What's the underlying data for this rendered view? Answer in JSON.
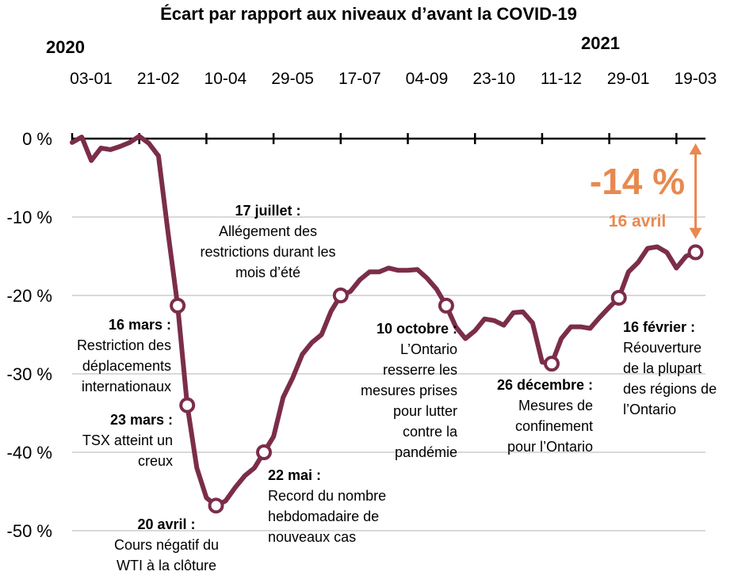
{
  "chart_data": {
    "type": "line",
    "title": "Écart par rapport aux niveaux d’avant la COVID-19",
    "years": [
      {
        "label": "2020",
        "x": 0
      },
      {
        "label": "2021",
        "x": 47
      }
    ],
    "x_ticks": [
      {
        "label": "03-01",
        "x": 0
      },
      {
        "label": "21-02",
        "x": 7
      },
      {
        "label": "10-04",
        "x": 14
      },
      {
        "label": "29-05",
        "x": 21
      },
      {
        "label": "17-07",
        "x": 28
      },
      {
        "label": "04-09",
        "x": 35
      },
      {
        "label": "23-10",
        "x": 42
      },
      {
        "label": "11-12",
        "x": 49
      },
      {
        "label": "29-01",
        "x": 56
      },
      {
        "label": "19-03",
        "x": 63
      }
    ],
    "ylim": [
      -52,
      3
    ],
    "y_ticks": [
      {
        "label": "0 %",
        "value": 0
      },
      {
        "label": "-10 %",
        "value": -10
      },
      {
        "label": "-20 %",
        "value": -20
      },
      {
        "label": "-30 %",
        "value": -30
      },
      {
        "label": "-40 %",
        "value": -40
      },
      {
        "label": "-50 %",
        "value": -50
      }
    ],
    "series": [
      {
        "color": "#7B2D4A",
        "points": [
          [
            0,
            -0.5
          ],
          [
            1,
            0.2
          ],
          [
            2,
            -2.8
          ],
          [
            3,
            -1.2
          ],
          [
            4,
            -1.4
          ],
          [
            5,
            -1.0
          ],
          [
            6,
            -0.5
          ],
          [
            7,
            0.3
          ],
          [
            8,
            -0.6
          ],
          [
            9,
            -2.2
          ],
          [
            10,
            -12
          ],
          [
            11,
            -21.3
          ],
          [
            12,
            -34
          ],
          [
            13,
            -42
          ],
          [
            14,
            -45.8
          ],
          [
            15,
            -46.8
          ],
          [
            16,
            -46.2
          ],
          [
            17,
            -44.5
          ],
          [
            18,
            -43
          ],
          [
            19,
            -42
          ],
          [
            20,
            -40
          ],
          [
            21,
            -38
          ],
          [
            22,
            -33
          ],
          [
            23,
            -30.5
          ],
          [
            24,
            -27.5
          ],
          [
            25,
            -26
          ],
          [
            26,
            -25
          ],
          [
            27,
            -22
          ],
          [
            28,
            -20
          ],
          [
            29,
            -19.5
          ],
          [
            30,
            -18
          ],
          [
            31,
            -17
          ],
          [
            32,
            -17
          ],
          [
            33,
            -16.5
          ],
          [
            34,
            -16.8
          ],
          [
            35,
            -16.8
          ],
          [
            36,
            -16.7
          ],
          [
            37,
            -17.8
          ],
          [
            38,
            -19.2
          ],
          [
            39,
            -21.3
          ],
          [
            40,
            -24
          ],
          [
            41,
            -25.5
          ],
          [
            42,
            -24.5
          ],
          [
            43,
            -23
          ],
          [
            44,
            -23.2
          ],
          [
            45,
            -23.8
          ],
          [
            46,
            -22.2
          ],
          [
            47,
            -22.1
          ],
          [
            48,
            -23.5
          ],
          [
            49,
            -28.5
          ],
          [
            50,
            -28.7
          ],
          [
            51,
            -25.5
          ],
          [
            52,
            -24
          ],
          [
            53,
            -24
          ],
          [
            54,
            -24.2
          ],
          [
            55,
            -22.8
          ],
          [
            56,
            -21.5
          ],
          [
            57,
            -20.3
          ],
          [
            58,
            -17
          ],
          [
            59,
            -15.8
          ],
          [
            60,
            -14
          ],
          [
            61,
            -13.8
          ],
          [
            62,
            -14.5
          ],
          [
            63,
            -16.5
          ],
          [
            64,
            -15
          ],
          [
            65,
            -14.5
          ]
        ]
      }
    ],
    "markers": [
      {
        "x": 11,
        "y": -21.3
      },
      {
        "x": 12,
        "y": -34
      },
      {
        "x": 15,
        "y": -46.8
      },
      {
        "x": 20,
        "y": -40
      },
      {
        "x": 28,
        "y": -20
      },
      {
        "x": 39,
        "y": -21.3
      },
      {
        "x": 50,
        "y": -28.7
      },
      {
        "x": 57,
        "y": -20.3
      },
      {
        "x": 65,
        "y": -14.5
      }
    ],
    "highlight": {
      "value_label": "-14 %",
      "date_label": "16 avril",
      "arrow_from": 0,
      "arrow_to": -14,
      "x": 65,
      "color": "#E8894F"
    },
    "annotations": [
      {
        "id": "mar16",
        "head": "16 mars :",
        "lines": [
          "Restriction des",
          "déplacements",
          "internationaux"
        ]
      },
      {
        "id": "mar23",
        "head": "23 mars :",
        "lines": [
          "TSX atteint un",
          "creux"
        ]
      },
      {
        "id": "apr20",
        "head": "20 avril :",
        "lines": [
          "Cours négatif du",
          "WTI à la clôture"
        ]
      },
      {
        "id": "may22",
        "head": "22 mai :",
        "lines": [
          "Record du nombre",
          "hebdomadaire de",
          "nouveaux cas"
        ]
      },
      {
        "id": "jul17",
        "head": "17 juillet :",
        "lines": [
          "Allégement des",
          "restrictions durant les",
          "mois d’été"
        ]
      },
      {
        "id": "oct10",
        "head": "10 octobre :",
        "lines": [
          "L’Ontario",
          "resserre les",
          "mesures prises",
          "pour lutter",
          "contre la",
          "pandémie"
        ]
      },
      {
        "id": "dec26",
        "head": "26 décembre :",
        "lines": [
          "Mesures de",
          "confinement",
          "pour l’Ontario"
        ]
      },
      {
        "id": "feb16",
        "head": "16 février :",
        "lines": [
          "Réouverture",
          "de la plupart",
          "des régions de",
          "l’Ontario"
        ]
      }
    ]
  }
}
